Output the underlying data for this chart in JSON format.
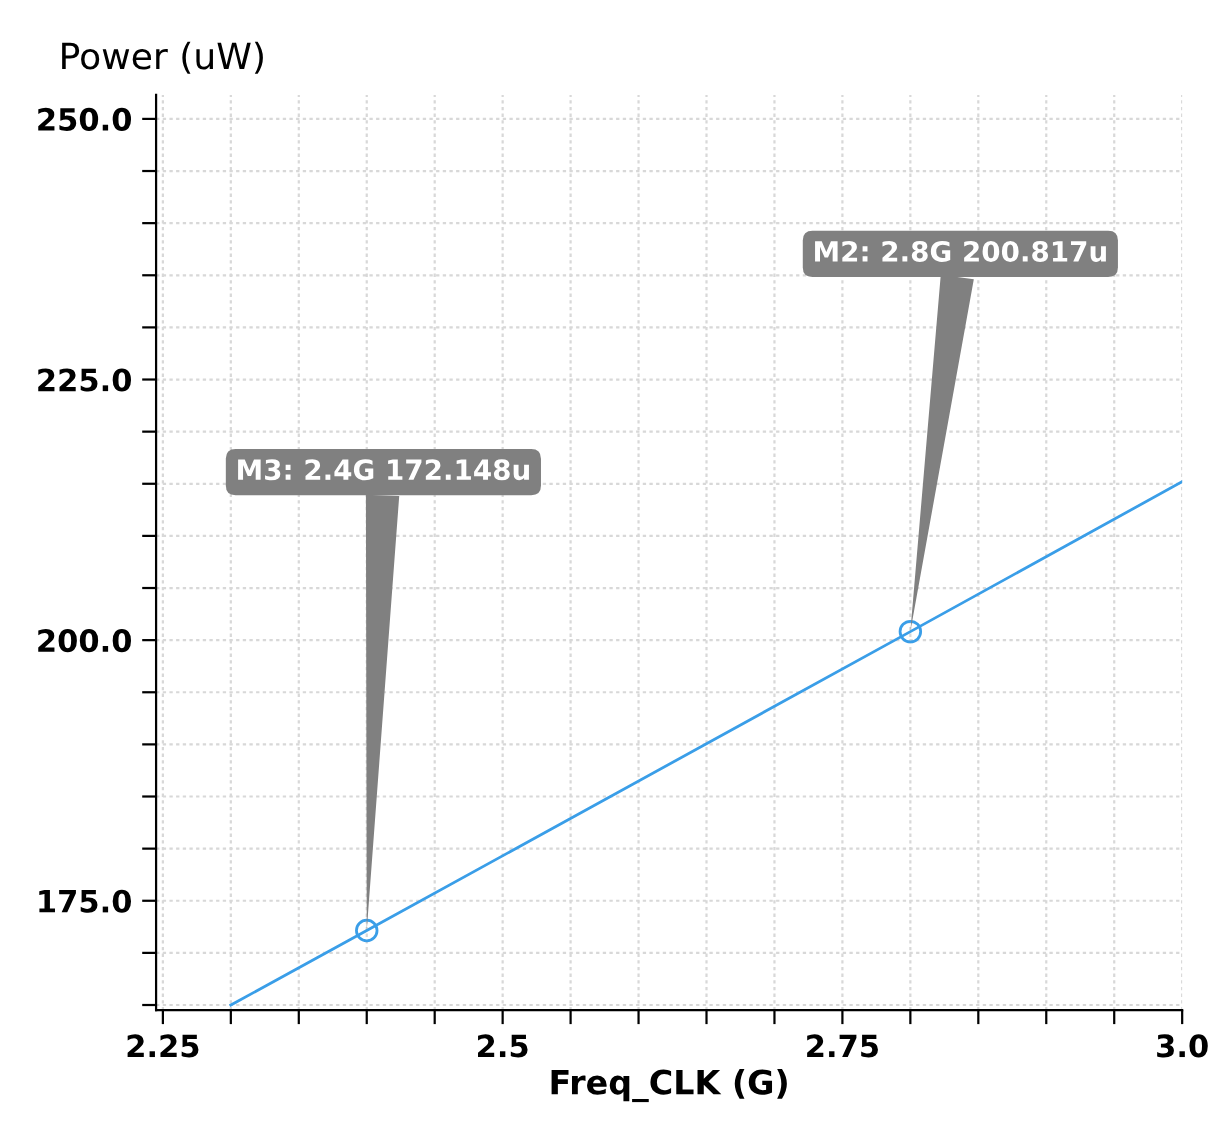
{
  "chart_data": {
    "type": "line",
    "xlabel": "Freq_CLK (G)",
    "ylabel": "Power (uW)",
    "xlim": [
      2.245,
      3.0
    ],
    "ylim": [
      164.5,
      252.3
    ],
    "xticks": [
      2.25,
      {
        "value": 2.3,
        "label": null
      },
      {
        "value": 2.35,
        "label": null
      },
      {
        "value": 2.4,
        "label": null
      },
      {
        "value": 2.45,
        "label": null
      },
      2.5,
      {
        "value": 2.55,
        "label": null
      },
      {
        "value": 2.6,
        "label": null
      },
      {
        "value": 2.65,
        "label": null
      },
      {
        "value": 2.7,
        "label": null
      },
      2.75,
      {
        "value": 2.8,
        "label": null
      },
      {
        "value": 2.85,
        "label": null
      },
      {
        "value": 2.9,
        "label": null
      },
      {
        "value": 2.95,
        "label": null
      },
      {
        "value": 3.0,
        "label": "3.0"
      }
    ],
    "yticks": [
      {
        "value": 165,
        "label": null
      },
      {
        "value": 170,
        "label": null
      },
      {
        "value": 175,
        "label": "175.0"
      },
      {
        "value": 180,
        "label": null
      },
      {
        "value": 185,
        "label": null
      },
      {
        "value": 190,
        "label": null
      },
      {
        "value": 195,
        "label": null
      },
      {
        "value": 200,
        "label": "200.0"
      },
      {
        "value": 205,
        "label": null
      },
      {
        "value": 210,
        "label": null
      },
      {
        "value": 215,
        "label": null
      },
      {
        "value": 220,
        "label": null
      },
      {
        "value": 225,
        "label": "225.0"
      },
      {
        "value": 230,
        "label": null
      },
      {
        "value": 235,
        "label": null
      },
      {
        "value": 240,
        "label": null
      },
      {
        "value": 245,
        "label": null
      },
      {
        "value": 250,
        "label": "250.0"
      }
    ],
    "grid": true,
    "series": [
      {
        "color": "#3a9ee8",
        "x": [
          2.3,
          2.4,
          2.8,
          3.0
        ],
        "values": [
          165.0,
          172.148,
          200.817,
          215.2
        ]
      },
      {
        "type": "scatter",
        "color": "#3a9ee8",
        "marker": "circle",
        "x": [
          2.4,
          2.8
        ],
        "values": [
          172.148,
          200.817
        ]
      }
    ],
    "annotations": [
      {
        "text": "M3: 2.4G 172.148u",
        "x": 2.4,
        "y": 172.148
      },
      {
        "text": "M2: 2.8G 200.817u",
        "x": 2.8,
        "y": 200.817
      }
    ]
  }
}
